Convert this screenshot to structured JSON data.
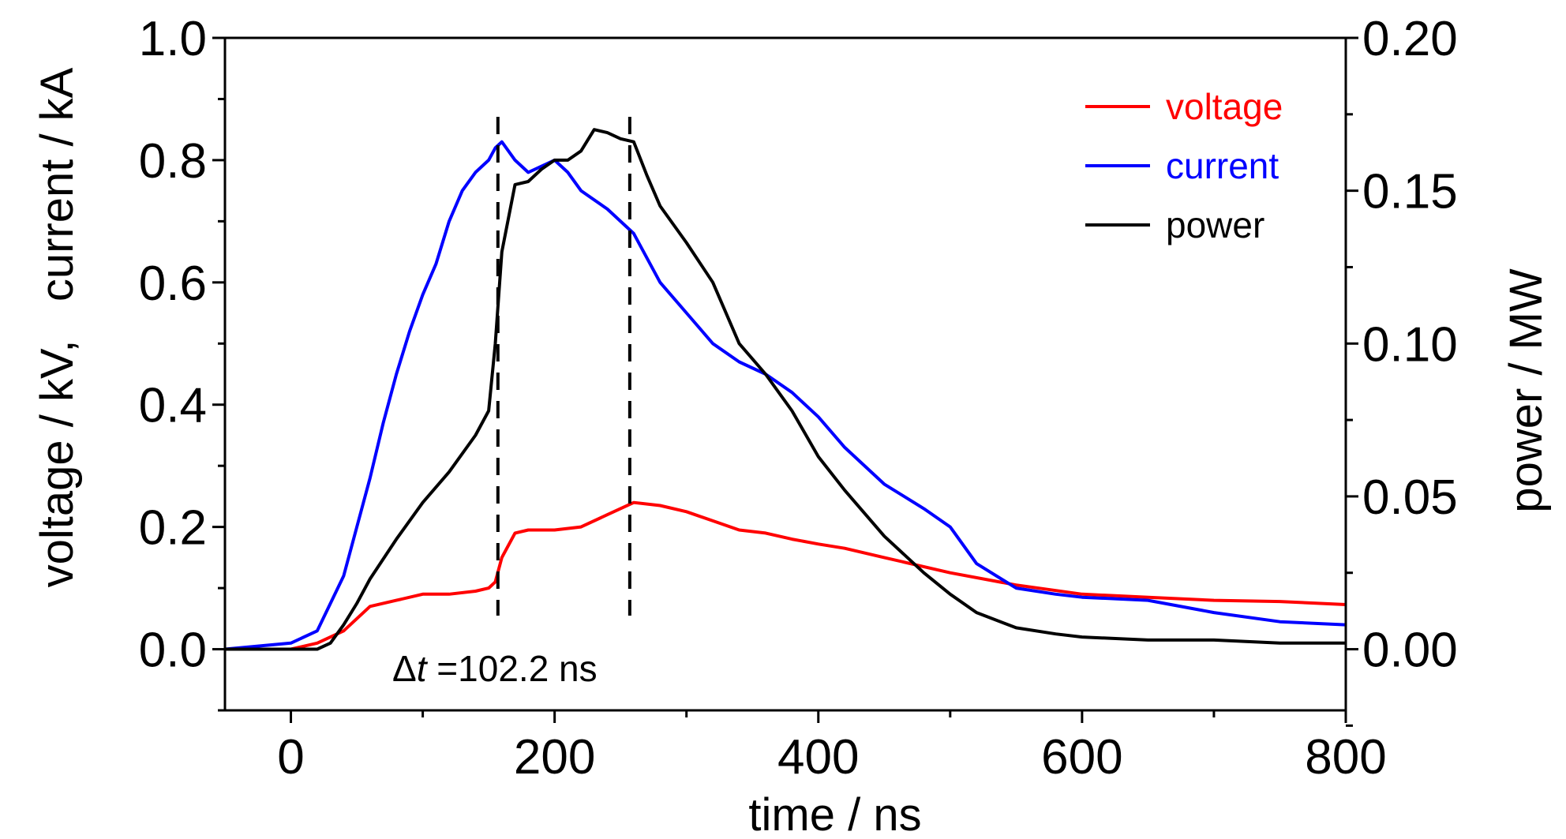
{
  "chart_data": {
    "type": "line",
    "xlabel": "time / ns",
    "ylabel_left": "voltage / kV,   current / kA",
    "ylabel_right": "power / MW",
    "xlim": [
      -50,
      800
    ],
    "ylim_left": [
      -0.1,
      1.0
    ],
    "ylim_right": [
      -0.02,
      0.2
    ],
    "x_ticks": [
      0,
      200,
      400,
      600,
      800
    ],
    "y_left_ticks": [
      0.0,
      0.2,
      0.4,
      0.6,
      0.8,
      1.0
    ],
    "y_right_ticks": [
      0.0,
      0.05,
      0.1,
      0.15,
      0.2
    ],
    "x_tick_labels": [
      "0",
      "200",
      "400",
      "600",
      "800"
    ],
    "y_left_tick_labels": [
      "0.0",
      "0.2",
      "0.4",
      "0.6",
      "0.8",
      "1.0"
    ],
    "y_right_tick_labels": [
      "0.00",
      "0.05",
      "0.10",
      "0.15",
      "0.20"
    ],
    "grid": false,
    "legend_position": "top-right",
    "series": [
      {
        "name": "voltage",
        "color": "#ff0000",
        "axis": "left",
        "x": [
          -50,
          0,
          20,
          40,
          50,
          60,
          80,
          100,
          120,
          140,
          150,
          155,
          160,
          170,
          180,
          200,
          220,
          240,
          260,
          280,
          300,
          320,
          340,
          360,
          380,
          400,
          420,
          450,
          500,
          550,
          600,
          650,
          700,
          750,
          800
        ],
        "y": [
          0.0,
          0.0,
          0.01,
          0.03,
          0.05,
          0.07,
          0.08,
          0.09,
          0.09,
          0.095,
          0.1,
          0.11,
          0.15,
          0.19,
          0.195,
          0.195,
          0.2,
          0.22,
          0.24,
          0.235,
          0.225,
          0.21,
          0.195,
          0.19,
          0.18,
          0.172,
          0.165,
          0.15,
          0.125,
          0.105,
          0.09,
          0.085,
          0.08,
          0.078,
          0.073
        ]
      },
      {
        "name": "current",
        "color": "#0000ff",
        "axis": "left",
        "x": [
          -50,
          0,
          20,
          40,
          50,
          60,
          70,
          80,
          90,
          100,
          110,
          120,
          130,
          140,
          150,
          155,
          160,
          170,
          180,
          190,
          200,
          210,
          220,
          240,
          260,
          280,
          300,
          320,
          340,
          360,
          380,
          400,
          420,
          450,
          480,
          500,
          520,
          550,
          580,
          600,
          650,
          700,
          750,
          800
        ],
        "y": [
          0.0,
          0.01,
          0.03,
          0.12,
          0.2,
          0.28,
          0.37,
          0.45,
          0.52,
          0.58,
          0.63,
          0.7,
          0.75,
          0.78,
          0.8,
          0.82,
          0.83,
          0.8,
          0.78,
          0.79,
          0.8,
          0.78,
          0.75,
          0.72,
          0.68,
          0.6,
          0.55,
          0.5,
          0.47,
          0.45,
          0.42,
          0.38,
          0.33,
          0.27,
          0.23,
          0.2,
          0.14,
          0.1,
          0.09,
          0.085,
          0.08,
          0.06,
          0.045,
          0.04
        ]
      },
      {
        "name": "power",
        "color": "#000000",
        "axis": "right",
        "x": [
          -50,
          0,
          20,
          30,
          40,
          50,
          60,
          80,
          100,
          120,
          140,
          150,
          155,
          160,
          170,
          180,
          190,
          200,
          210,
          220,
          230,
          240,
          250,
          260,
          270,
          280,
          300,
          320,
          340,
          360,
          380,
          400,
          420,
          450,
          480,
          500,
          520,
          550,
          580,
          600,
          650,
          700,
          750,
          800
        ],
        "y": [
          0.0,
          0.0,
          0.0,
          0.002,
          0.008,
          0.015,
          0.023,
          0.036,
          0.048,
          0.058,
          0.07,
          0.078,
          0.1,
          0.13,
          0.152,
          0.153,
          0.157,
          0.16,
          0.16,
          0.163,
          0.17,
          0.169,
          0.167,
          0.166,
          0.155,
          0.145,
          0.133,
          0.12,
          0.1,
          0.09,
          0.078,
          0.063,
          0.052,
          0.037,
          0.025,
          0.018,
          0.012,
          0.007,
          0.005,
          0.004,
          0.003,
          0.003,
          0.002,
          0.002
        ]
      }
    ],
    "markers": [
      {
        "type": "vertical-dashed-line",
        "x": 157
      },
      {
        "type": "vertical-dashed-line",
        "x": 257
      }
    ],
    "annotations": [
      {
        "delta_symbol": "Δ",
        "variable": "t",
        "text": " =102.2 ns"
      }
    ]
  }
}
